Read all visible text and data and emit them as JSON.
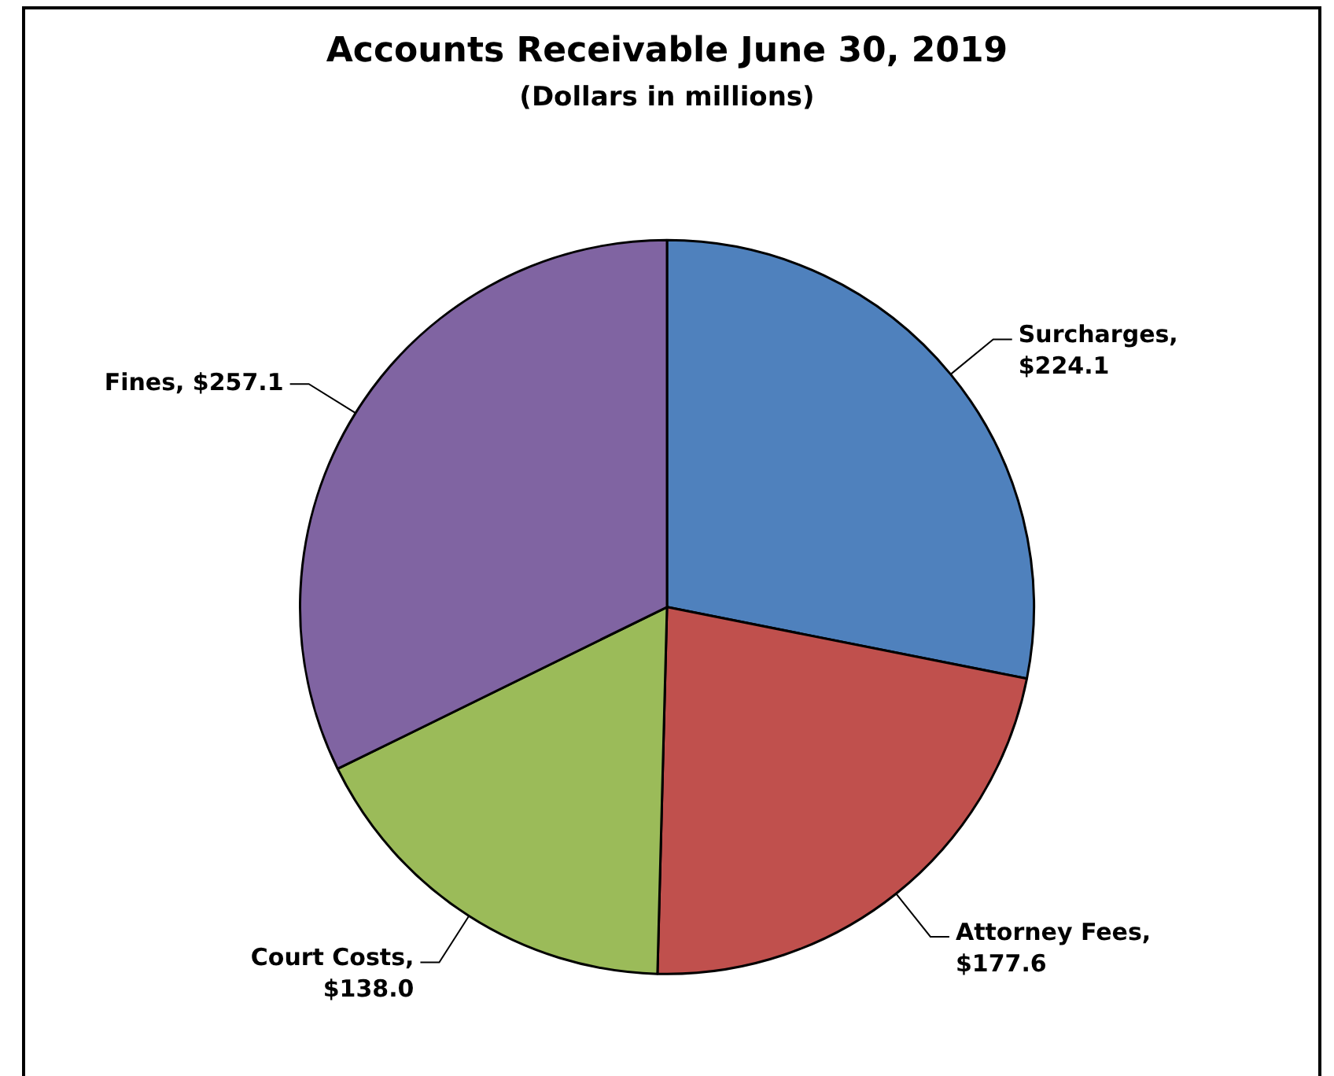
{
  "chart_data": {
    "type": "pie",
    "title": "Accounts Receivable June 30, 2019",
    "subtitle": "(Dollars in millions)",
    "categories": [
      "Surcharges",
      "Attorney Fees",
      "Court Costs",
      "Fines"
    ],
    "values": [
      224.1,
      177.6,
      138.0,
      257.1
    ],
    "value_labels": [
      ", $224.1",
      ", $177.6",
      ", $138.0",
      ", $257.1"
    ],
    "colors": [
      "#4f81bd",
      "#c0504d",
      "#9bbb59",
      "#8064a2"
    ],
    "legend": false
  }
}
